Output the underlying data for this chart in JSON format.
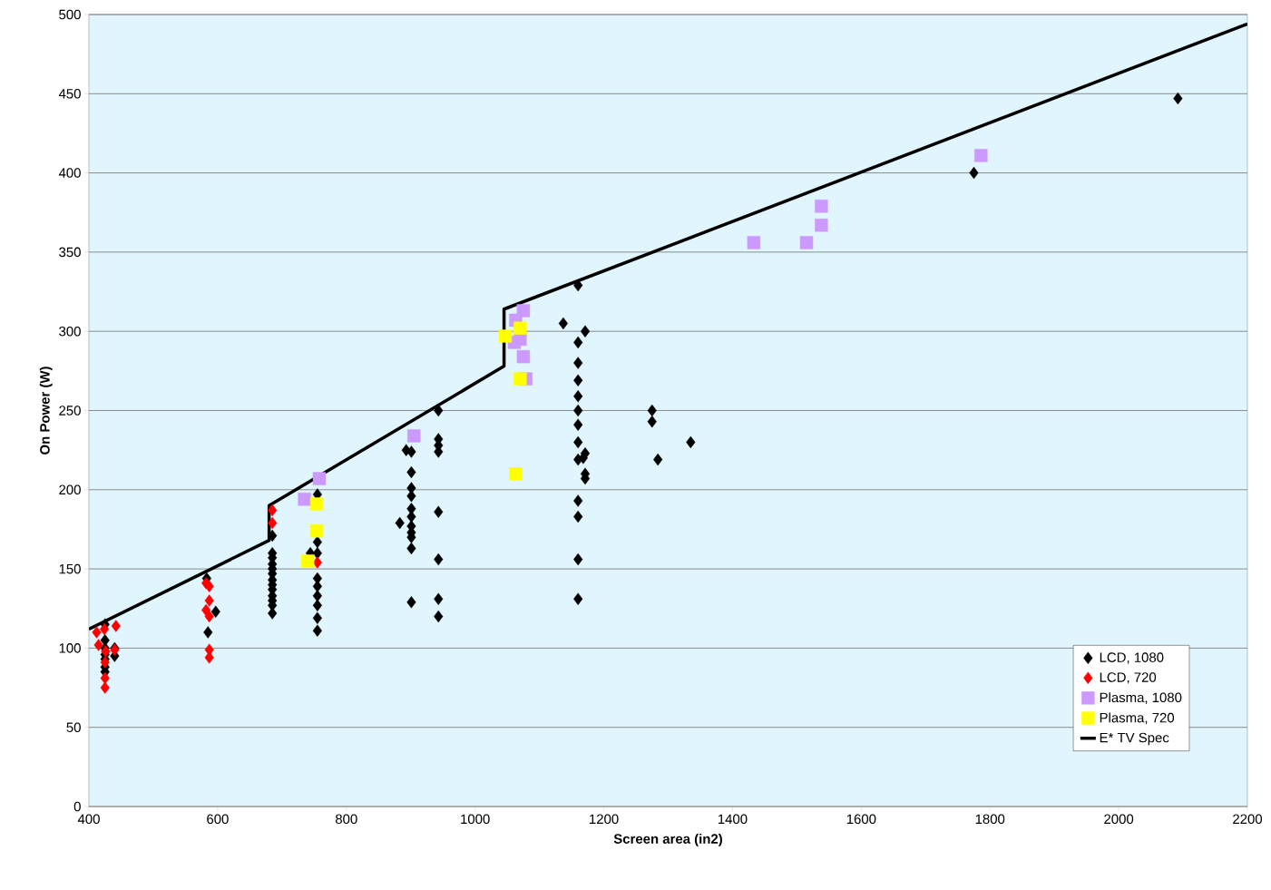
{
  "chart_data": {
    "type": "scatter",
    "xlabel": "Screen area (in2)",
    "ylabel": "On Power (W)",
    "xlim": [
      400,
      2200
    ],
    "ylim": [
      0,
      500
    ],
    "xticks": [
      400,
      600,
      800,
      1000,
      1200,
      1400,
      1600,
      1800,
      2000,
      2200
    ],
    "yticks": [
      0,
      50,
      100,
      150,
      200,
      250,
      300,
      350,
      400,
      450,
      500
    ],
    "grid": "y",
    "legend": "bottom right",
    "series": [
      {
        "name": "LCD, 1080",
        "color": "#000000",
        "marker": "diamond",
        "x": [
          425,
          425,
          425,
          425,
          425,
          425,
          425,
          440,
          440,
          583,
          597,
          585,
          685,
          685,
          685,
          685,
          685,
          685,
          685,
          685,
          685,
          685,
          685,
          685,
          685,
          755,
          755,
          755,
          755,
          755,
          755,
          755,
          755,
          755,
          744,
          901,
          901,
          901,
          901,
          901,
          901,
          901,
          901,
          901,
          901,
          901,
          883,
          893,
          943,
          943,
          943,
          943,
          943,
          943,
          943,
          943,
          1160,
          1160,
          1160,
          1160,
          1160,
          1160,
          1160,
          1160,
          1160,
          1160,
          1160,
          1160,
          1160,
          1171,
          1171,
          1171,
          1171,
          1168,
          1137,
          1275,
          1275,
          1284,
          1335,
          1775,
          2092
        ],
        "values": [
          115,
          105,
          100,
          96,
          93,
          88,
          85,
          100,
          95,
          144,
          123,
          110,
          171,
          160,
          157,
          153,
          150,
          147,
          143,
          140,
          137,
          133,
          130,
          127,
          122,
          197,
          167,
          160,
          144,
          139,
          133,
          127,
          119,
          111,
          160,
          224,
          211,
          201,
          196,
          188,
          183,
          177,
          173,
          170,
          163,
          129,
          179,
          225,
          250,
          232,
          228,
          224,
          186,
          156,
          131,
          120,
          329,
          293,
          280,
          269,
          259,
          250,
          241,
          230,
          219,
          193,
          183,
          156,
          131,
          300,
          223,
          210,
          207,
          220,
          305,
          250,
          243,
          219,
          230,
          400,
          447
        ]
      },
      {
        "name": "LCD, 720",
        "color": "#ff0000",
        "marker": "diamond",
        "x": [
          412,
          442,
          424,
          415,
          426,
          440,
          425,
          425,
          425,
          582,
          587,
          587,
          582,
          587,
          587,
          587,
          685,
          685,
          755
        ],
        "values": [
          110,
          114,
          112,
          102,
          98,
          99,
          81,
          75,
          91,
          141,
          139,
          130,
          124,
          120,
          99,
          94,
          187,
          179,
          154
        ]
      },
      {
        "name": "Plasma, 1080",
        "color": "#cc99ff",
        "marker": "square",
        "x": [
          735,
          758,
          905,
          1075,
          1063,
          1070,
          1061,
          1075,
          1079,
          1433,
          1515,
          1538,
          1538,
          1786
        ],
        "values": [
          194,
          207,
          234,
          313,
          307,
          295,
          293,
          284,
          270,
          356,
          356,
          367,
          379,
          411
        ]
      },
      {
        "name": "Plasma, 720",
        "color": "#ffff00",
        "marker": "square",
        "x": [
          740,
          754,
          754,
          1047,
          1070,
          1070,
          1063
        ],
        "values": [
          155,
          174,
          191,
          297,
          302,
          270,
          210
        ]
      },
      {
        "name": "E* TV Spec",
        "type": "line",
        "color": "#000000",
        "marker": "none",
        "line_style": "solid",
        "x": [
          400,
          680,
          680,
          1045,
          1045,
          2200
        ],
        "values": [
          112,
          168,
          190,
          278,
          314,
          494
        ]
      }
    ]
  }
}
